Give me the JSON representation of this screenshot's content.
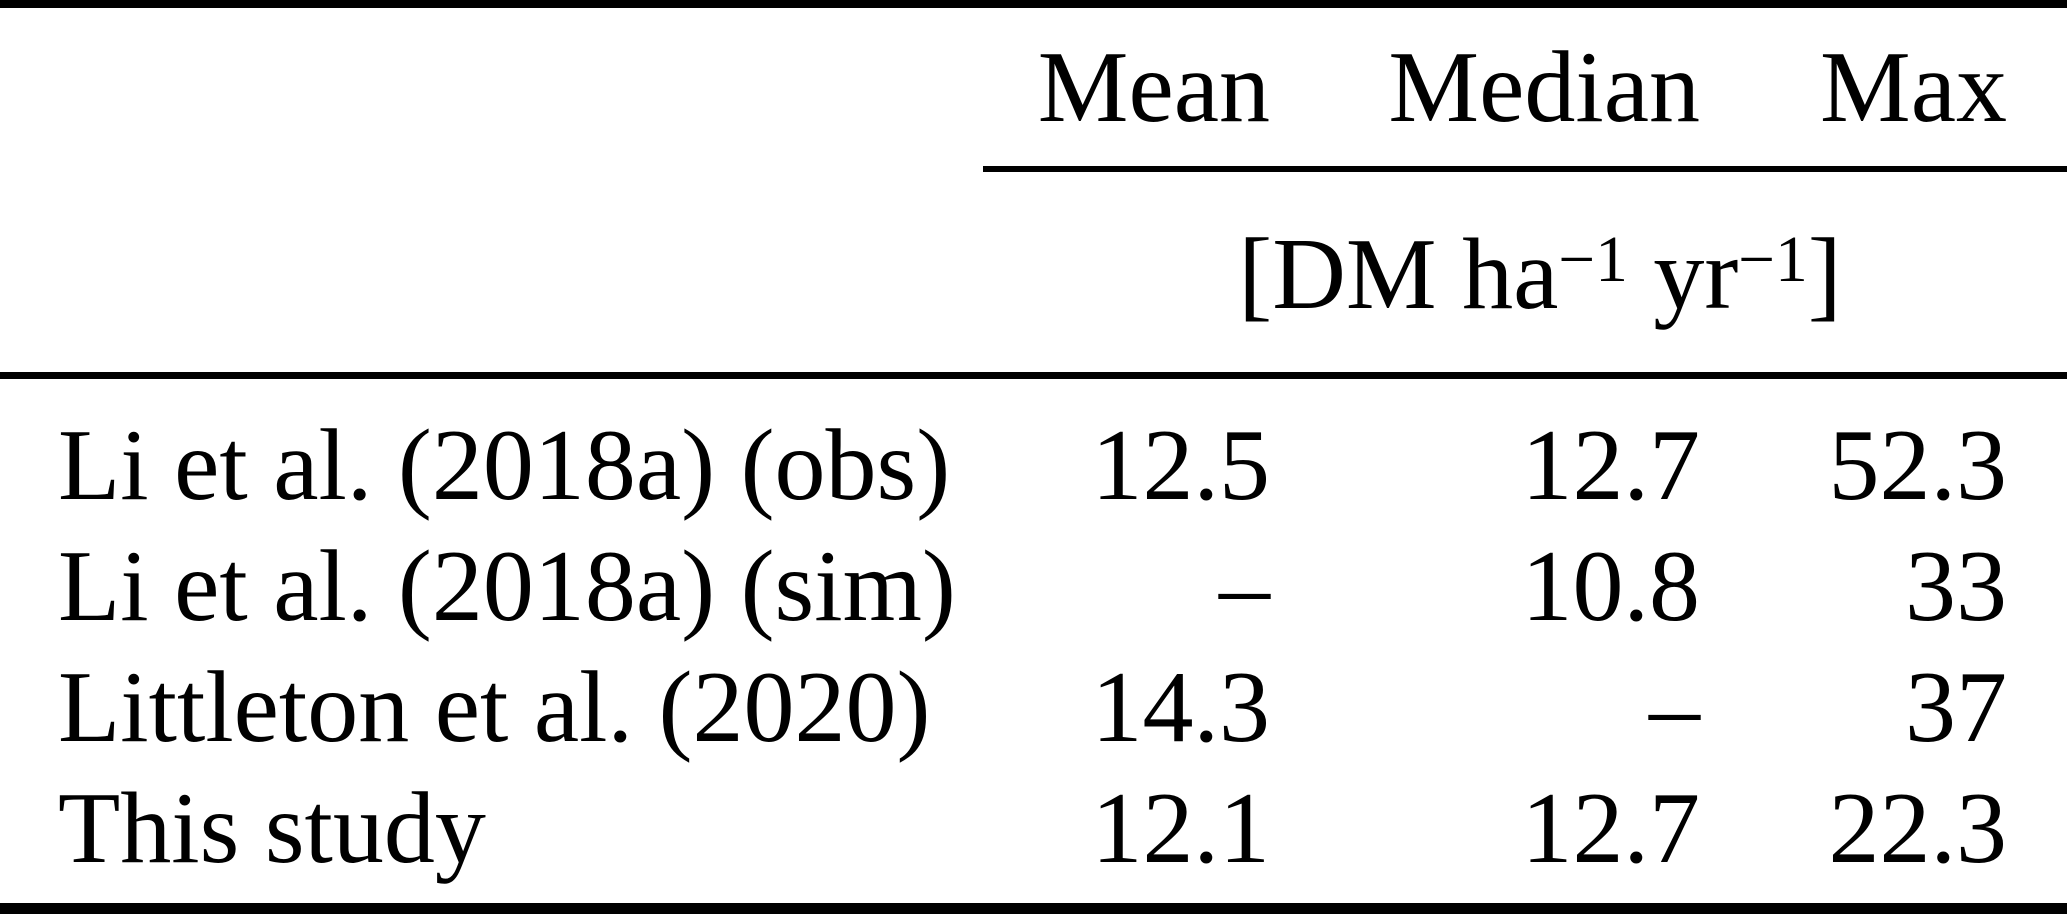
{
  "colors": {
    "background": "#ffffff",
    "text": "#000000",
    "rules": "#000000"
  },
  "table": {
    "column_headers": [
      "",
      "Mean",
      "Median",
      "Max"
    ],
    "unit_row": {
      "full_text": "[DM ha−1 yr−1]",
      "prefix": "[DM ha",
      "superscript_1": "−1",
      "middle": " yr",
      "superscript_2": "−1",
      "suffix": "]"
    },
    "rows": [
      {
        "label": "Li et al. (2018a) (obs)",
        "mean": "12.5",
        "median": "12.7",
        "max": "52.3"
      },
      {
        "label": "Li et al. (2018a) (sim)",
        "mean": "–",
        "median": "10.8",
        "max": "33"
      },
      {
        "label": "Littleton et al. (2020)",
        "mean": "14.3",
        "median": "–",
        "max": "37"
      },
      {
        "label": "This study",
        "mean": "12.1",
        "median": "12.7",
        "max": "22.3"
      }
    ]
  }
}
